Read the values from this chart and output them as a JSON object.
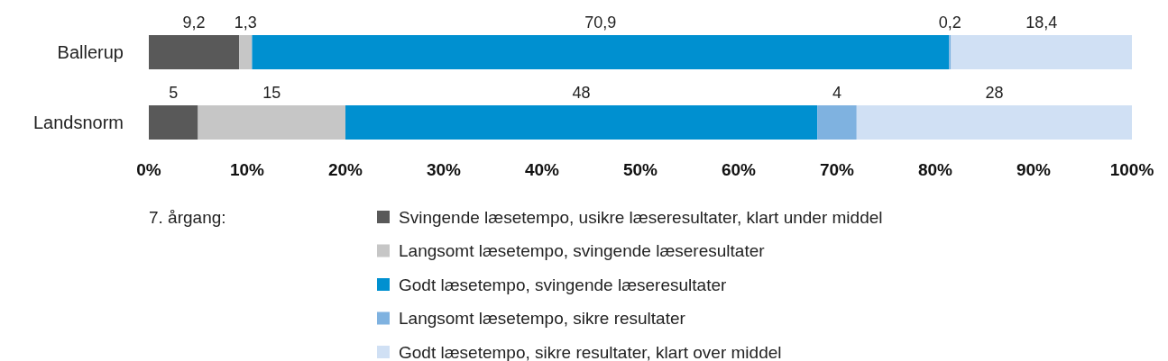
{
  "chart_data": {
    "type": "bar",
    "orientation": "horizontal",
    "stacked": true,
    "categories": [
      "Ballerup",
      "Landsnorm"
    ],
    "xlim": [
      0,
      100
    ],
    "xticks": [
      {
        "value": 0,
        "label": "0%"
      },
      {
        "value": 10,
        "label": "10%"
      },
      {
        "value": 20,
        "label": "20%"
      },
      {
        "value": 30,
        "label": "30%"
      },
      {
        "value": 40,
        "label": "40%"
      },
      {
        "value": 50,
        "label": "50%"
      },
      {
        "value": 60,
        "label": "60%"
      },
      {
        "value": 70,
        "label": "70%"
      },
      {
        "value": 80,
        "label": "80%"
      },
      {
        "value": 90,
        "label": "90%"
      },
      {
        "value": 100,
        "label": "100%"
      }
    ],
    "legend": "bottom",
    "legend_title": "7. årgang:",
    "series": [
      {
        "name": "Svingende læsetempo, usikre læseresultater, klart under middel",
        "color": "#595959",
        "values": [
          9.2,
          5
        ],
        "value_labels": [
          "9,2",
          "5"
        ]
      },
      {
        "name": "Langsomt læsetempo, svingende læseresultater",
        "color": "#c6c6c6",
        "values": [
          1.3,
          15
        ],
        "value_labels": [
          "1,3",
          "15"
        ]
      },
      {
        "name": "Godt læsetempo, svingende læseresultater",
        "color": "#0090d0",
        "values": [
          70.9,
          48
        ],
        "value_labels": [
          "70,9",
          "48"
        ]
      },
      {
        "name": "Langsomt læsetempo, sikre resultater",
        "color": "#7fb2e0",
        "values": [
          0.2,
          4
        ],
        "value_labels": [
          "0,2",
          "4"
        ]
      },
      {
        "name": "Godt læsetempo, sikre resultater, klart over middel",
        "color": "#d0e0f4",
        "values": [
          18.4,
          28
        ],
        "value_labels": [
          "18,4",
          "28"
        ]
      }
    ]
  }
}
